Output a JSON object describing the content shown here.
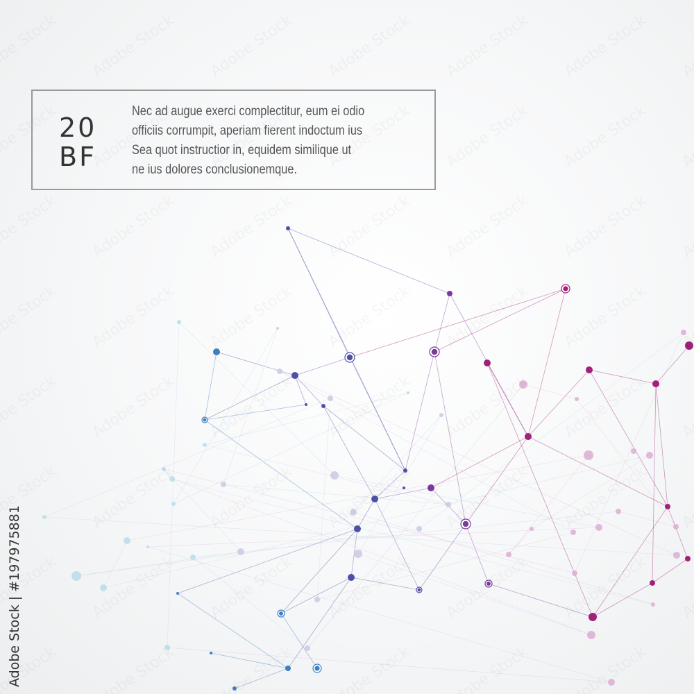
{
  "card": {
    "code_line1": "20",
    "code_line2": "BF",
    "paragraph": [
      "Nec ad augue exerci complectitur, eum ei odio",
      "officiis corrumpit, aperiam fierent indoctum ius",
      "Sea quot instructior in, equidem similique ut",
      "ne ius dolores conclusionemque."
    ]
  },
  "credit": "Adobe Stock | #197975881",
  "watermark": "Adobe Stock",
  "colors": {
    "blue": "#3f7fc0",
    "indigo": "#4f4fa6",
    "purple": "#7a3a9a",
    "magenta": "#a0207a",
    "cyan": "#9ad0e0",
    "border": "#9a9a9a"
  }
}
